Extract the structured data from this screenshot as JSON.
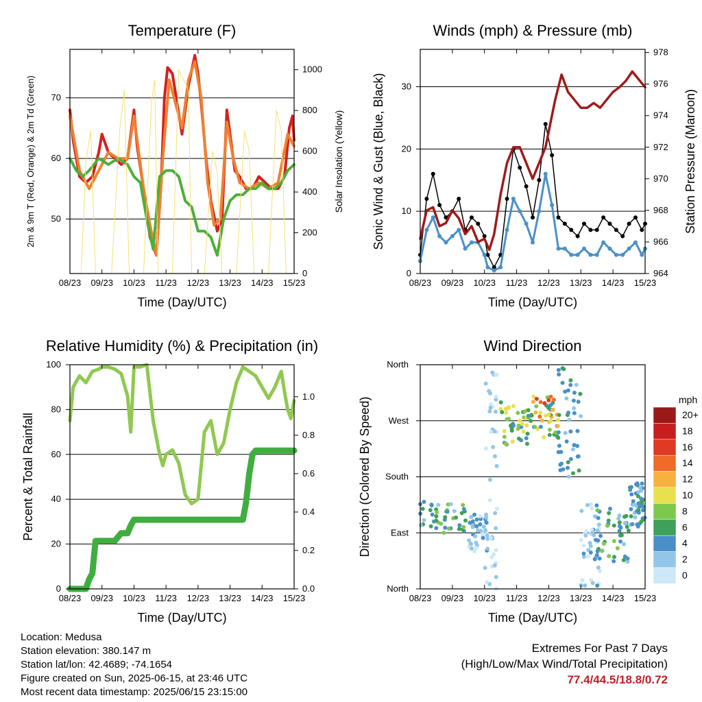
{
  "chart_data": [
    {
      "id": "temperature",
      "type": "line",
      "title": "Temperature (F)",
      "xlabel": "Time (Day/UTC)",
      "ylabel": "2m & 9m T (Red, Orange) & 2m Td (Green)",
      "ylabel_right": "Solar Insolation (Yellow)",
      "x_ticks": [
        "08/23",
        "09/23",
        "10/23",
        "11/23",
        "12/23",
        "13/23",
        "14/23",
        "15/23"
      ],
      "y_ticks": [
        50,
        60,
        70
      ],
      "ylim": [
        41,
        78
      ],
      "y_right_ticks": [
        0,
        200,
        400,
        600,
        800,
        1000
      ],
      "y_right_lim": [
        0,
        1100
      ],
      "grid": "horizontal",
      "series": [
        {
          "name": "2m T",
          "color": "#d42020",
          "x": [
            0,
            0.1,
            0.3,
            0.5,
            0.7,
            0.9,
            1.0,
            1.2,
            1.4,
            1.6,
            1.8,
            1.9,
            2.0,
            2.1,
            2.3,
            2.5,
            2.7,
            2.85,
            2.95,
            3.05,
            3.2,
            3.35,
            3.5,
            3.7,
            3.9,
            4.0,
            4.1,
            4.25,
            4.4,
            4.6,
            4.75,
            4.9,
            5.0,
            5.15,
            5.3,
            5.5,
            5.7,
            5.9,
            6.1,
            6.3,
            6.5,
            6.7,
            6.85,
            6.95,
            7.0
          ],
          "y": [
            68,
            63,
            57,
            56,
            57,
            61,
            64,
            61,
            60,
            59,
            60,
            64,
            68,
            62,
            55,
            47,
            44,
            56,
            70,
            75,
            74,
            69,
            64,
            72,
            77,
            74,
            69,
            60,
            53,
            48,
            50,
            68,
            64,
            58,
            57,
            55,
            55,
            57,
            56,
            55,
            55,
            57,
            65,
            67,
            63
          ]
        },
        {
          "name": "9m T",
          "color": "#f08030",
          "x": [
            0,
            0.3,
            0.6,
            0.9,
            1.2,
            1.5,
            1.8,
            2.0,
            2.3,
            2.5,
            2.7,
            2.9,
            3.1,
            3.3,
            3.5,
            3.7,
            3.9,
            4.1,
            4.3,
            4.5,
            4.7,
            4.9,
            5.1,
            5.3,
            5.6,
            5.9,
            6.2,
            6.5,
            6.8,
            7.0
          ],
          "y": [
            67,
            58,
            55,
            58,
            61,
            60,
            60,
            67,
            55,
            49,
            44,
            60,
            73,
            69,
            65,
            73,
            76,
            70,
            56,
            49,
            50,
            66,
            60,
            56,
            55,
            56,
            55,
            56,
            64,
            62
          ]
        },
        {
          "name": "2m Td",
          "color": "#4caf3a",
          "x": [
            0,
            0.2,
            0.4,
            0.6,
            0.9,
            1.2,
            1.5,
            1.8,
            2.0,
            2.2,
            2.4,
            2.6,
            2.8,
            3.0,
            3.2,
            3.4,
            3.6,
            3.8,
            4.0,
            4.2,
            4.4,
            4.6,
            4.8,
            5.0,
            5.2,
            5.4,
            5.6,
            5.8,
            6.0,
            6.2,
            6.4,
            6.6,
            6.8,
            7.0
          ],
          "y": [
            60,
            58,
            57,
            58,
            60,
            59,
            60,
            59,
            57,
            56,
            50,
            45,
            57,
            58,
            58,
            57,
            53,
            52,
            48,
            48,
            47,
            44,
            50,
            53,
            54,
            54,
            55,
            55,
            56,
            55,
            55,
            56,
            58,
            59
          ]
        },
        {
          "name": "Solar Insolation",
          "color": "#f5e070",
          "axis": "right",
          "x": [
            0,
            0.35,
            0.5,
            0.65,
            0.8,
            1.3,
            1.55,
            1.7,
            1.85,
            2.3,
            2.55,
            2.65,
            2.75,
            3.2,
            3.4,
            3.55,
            3.7,
            3.8,
            4.2,
            4.45,
            4.6,
            4.75,
            5.2,
            5.45,
            5.6,
            5.75,
            6.2,
            6.45,
            6.6,
            6.75,
            7.0
          ],
          "y": [
            0,
            0,
            550,
            700,
            0,
            0,
            700,
            900,
            0,
            0,
            850,
            950,
            0,
            0,
            1000,
            950,
            900,
            0,
            0,
            600,
            500,
            0,
            0,
            700,
            600,
            0,
            0,
            800,
            700,
            0,
            0
          ]
        }
      ]
    },
    {
      "id": "winds",
      "type": "scatter",
      "title": "Winds (mph) & Pressure (mb)",
      "xlabel": "Time (Day/UTC)",
      "ylabel": "Sonic Wind & Gust (Blue, Black)",
      "ylabel_right": "Station Pressure (Maroon)",
      "x_ticks": [
        "08/23",
        "09/23",
        "10/23",
        "11/23",
        "12/23",
        "13/23",
        "14/23",
        "15/23"
      ],
      "y_ticks": [
        0,
        10,
        20,
        30
      ],
      "ylim": [
        0,
        36
      ],
      "y_right_ticks": [
        964,
        966,
        968,
        970,
        972,
        974,
        976,
        978
      ],
      "y_right_lim": [
        964,
        978.2
      ],
      "grid": "horizontal",
      "series": [
        {
          "name": "Gust",
          "color": "#000000",
          "x": [
            0,
            0.2,
            0.4,
            0.6,
            0.8,
            1.0,
            1.2,
            1.4,
            1.6,
            1.8,
            2.0,
            2.1,
            2.3,
            2.5,
            2.7,
            2.9,
            3.1,
            3.3,
            3.5,
            3.7,
            3.9,
            4.1,
            4.3,
            4.5,
            4.7,
            4.9,
            5.1,
            5.3,
            5.5,
            5.7,
            5.9,
            6.1,
            6.3,
            6.5,
            6.7,
            6.9,
            7.0
          ],
          "y": [
            3,
            12,
            16,
            11,
            9,
            10,
            12,
            7,
            9,
            8,
            6,
            3,
            1,
            3,
            12,
            20,
            17,
            14,
            9,
            15,
            24,
            19,
            9,
            8,
            7,
            6,
            8,
            7,
            7,
            9,
            8,
            7,
            6,
            8,
            9,
            7,
            8
          ]
        },
        {
          "name": "Wind",
          "color": "#4a90c8",
          "x": [
            0,
            0.2,
            0.4,
            0.6,
            0.8,
            1.0,
            1.2,
            1.4,
            1.6,
            1.8,
            2.0,
            2.1,
            2.3,
            2.5,
            2.7,
            2.9,
            3.1,
            3.3,
            3.5,
            3.7,
            3.9,
            4.1,
            4.3,
            4.5,
            4.7,
            4.9,
            5.1,
            5.3,
            5.5,
            5.7,
            5.9,
            6.1,
            6.3,
            6.5,
            6.7,
            6.9,
            7.0
          ],
          "y": [
            2,
            7,
            9,
            6,
            5,
            6,
            7,
            4,
            5,
            5,
            3,
            1,
            0.5,
            1,
            7,
            12,
            10,
            8,
            5,
            10,
            16,
            11,
            4,
            4,
            3,
            3,
            4,
            3,
            3,
            5,
            4,
            3,
            3,
            4,
            5,
            3,
            4
          ]
        },
        {
          "name": "Station Pressure",
          "color": "#a01a1a",
          "axis": "right",
          "x": [
            0,
            0.2,
            0.4,
            0.6,
            0.8,
            1.0,
            1.2,
            1.4,
            1.6,
            1.8,
            2.0,
            2.15,
            2.3,
            2.5,
            2.7,
            2.9,
            3.1,
            3.3,
            3.5,
            3.7,
            3.9,
            4.0,
            4.2,
            4.4,
            4.6,
            4.8,
            5.0,
            5.2,
            5.4,
            5.6,
            5.8,
            6.0,
            6.2,
            6.4,
            6.6,
            6.8,
            7.0
          ],
          "y": [
            966.2,
            968,
            968.2,
            967,
            967.2,
            968,
            967.5,
            966.5,
            967,
            966,
            966.2,
            965.5,
            966.5,
            969,
            971,
            972,
            972,
            971,
            970,
            971,
            972,
            973,
            975,
            976.6,
            975.5,
            975,
            974.5,
            974.5,
            974.8,
            974.5,
            975,
            975.5,
            975.8,
            976.2,
            976.8,
            976.3,
            975.8
          ]
        }
      ]
    },
    {
      "id": "humidity",
      "type": "line",
      "title": "Relative Humidity (%) & Precipitation (in)",
      "xlabel": "Time (Day/UTC)",
      "ylabel": "Percent & Total Rainfall",
      "x_ticks": [
        "08/23",
        "09/23",
        "10/23",
        "11/23",
        "12/23",
        "13/23",
        "14/23",
        "15/23"
      ],
      "y_ticks": [
        0,
        20,
        40,
        60,
        80,
        100
      ],
      "ylim": [
        0,
        100
      ],
      "y_right_ticks": [
        "0.0",
        "0.2",
        "0.4",
        "0.6",
        "0.8",
        "1.0"
      ],
      "y_right_lim": [
        0,
        1.167
      ],
      "grid": "horizontal",
      "series": [
        {
          "name": "Relative Humidity",
          "color": "#90c850",
          "x": [
            0,
            0.1,
            0.3,
            0.5,
            0.7,
            0.9,
            1.0,
            1.2,
            1.4,
            1.6,
            1.8,
            1.9,
            2.0,
            2.2,
            2.4,
            2.6,
            2.8,
            2.9,
            3.0,
            3.2,
            3.4,
            3.6,
            3.8,
            4.0,
            4.2,
            4.4,
            4.6,
            4.8,
            5.0,
            5.2,
            5.4,
            5.6,
            5.8,
            6.0,
            6.2,
            6.4,
            6.6,
            6.7,
            6.8,
            6.9,
            7.0
          ],
          "y": [
            75,
            90,
            95,
            92,
            97,
            98,
            99,
            99,
            98,
            96,
            86,
            70,
            99,
            99,
            100,
            75,
            60,
            55,
            60,
            62,
            56,
            42,
            38,
            40,
            70,
            75,
            60,
            65,
            80,
            92,
            99,
            97,
            95,
            90,
            85,
            90,
            97,
            88,
            80,
            76,
            84
          ]
        },
        {
          "name": "Total Rainfall",
          "color": "#3fae3f",
          "axis": "right",
          "x": [
            0,
            0.3,
            0.5,
            0.6,
            0.7,
            0.8,
            1.0,
            1.2,
            1.4,
            1.5,
            1.6,
            1.8,
            1.9,
            2.0,
            2.2,
            3.0,
            4.0,
            5.0,
            5.4,
            5.5,
            5.6,
            5.7,
            5.8,
            6.0,
            7.0
          ],
          "y": [
            0,
            0,
            0,
            0.05,
            0.08,
            0.25,
            0.25,
            0.25,
            0.25,
            0.27,
            0.29,
            0.29,
            0.33,
            0.36,
            0.36,
            0.36,
            0.36,
            0.36,
            0.36,
            0.45,
            0.6,
            0.7,
            0.72,
            0.72,
            0.72
          ]
        }
      ]
    },
    {
      "id": "direction",
      "type": "scatter",
      "title": "Wind Direction",
      "xlabel": "Time (Day/UTC)",
      "ylabel": "Direction (Colored By Speed)",
      "x_ticks": [
        "08/23",
        "09/23",
        "10/23",
        "11/23",
        "12/23",
        "13/23",
        "14/23",
        "15/23"
      ],
      "y_ticks": [
        "North",
        "East",
        "South",
        "West",
        "North"
      ],
      "ylim": [
        0,
        360
      ],
      "grid": "horizontal",
      "colorbar": {
        "title": "mph",
        "labels": [
          "0",
          "2",
          "4",
          "6",
          "8",
          "10",
          "12",
          "14",
          "16",
          "18",
          "20+"
        ],
        "colors": [
          "#cde8f7",
          "#92c6e8",
          "#4a90c8",
          "#3fa05a",
          "#7ec850",
          "#e8e050",
          "#f8b040",
          "#f06a28",
          "#e03a24",
          "#c81e1e",
          "#9a1a1a"
        ]
      },
      "clusters": [
        {
          "x": [
            0,
            1.5
          ],
          "dir": [
            90,
            140
          ],
          "speed": [
            2,
            8
          ]
        },
        {
          "x": [
            1.5,
            2.1
          ],
          "dir": [
            60,
            120
          ],
          "speed": [
            0,
            4
          ]
        },
        {
          "x": [
            2.0,
            2.4
          ],
          "dir": [
            0,
            360
          ],
          "speed": [
            0,
            2
          ]
        },
        {
          "x": [
            2.5,
            3.5
          ],
          "dir": [
            230,
            300
          ],
          "speed": [
            4,
            12
          ]
        },
        {
          "x": [
            3.5,
            4.3
          ],
          "dir": [
            240,
            310
          ],
          "speed": [
            4,
            16
          ]
        },
        {
          "x": [
            4.3,
            5.0
          ],
          "dir": [
            180,
            360
          ],
          "speed": [
            2,
            6
          ]
        },
        {
          "x": [
            5.0,
            5.6
          ],
          "dir": [
            0,
            140
          ],
          "speed": [
            0,
            4
          ]
        },
        {
          "x": [
            5.5,
            6.5
          ],
          "dir": [
            40,
            130
          ],
          "speed": [
            2,
            8
          ]
        },
        {
          "x": [
            6.5,
            7.0
          ],
          "dir": [
            100,
            170
          ],
          "speed": [
            2,
            6
          ]
        }
      ]
    }
  ],
  "footer": {
    "location": "Location: Medusa",
    "elevation": "Station elevation: 380.147 m",
    "latlon": "Station lat/lon: 42.4689; -74.1654",
    "created": "Figure created on Sun, 2025-06-15, at 23:46 UTC",
    "recent": "Most recent data timestamp: 2025/06/15 23:15:00"
  },
  "extremes": {
    "title": "Extremes For Past 7 Days",
    "subtitle": "(High/Low/Max Wind/Total Precipitation)",
    "values": "77.4/44.5/18.8/0.72"
  }
}
